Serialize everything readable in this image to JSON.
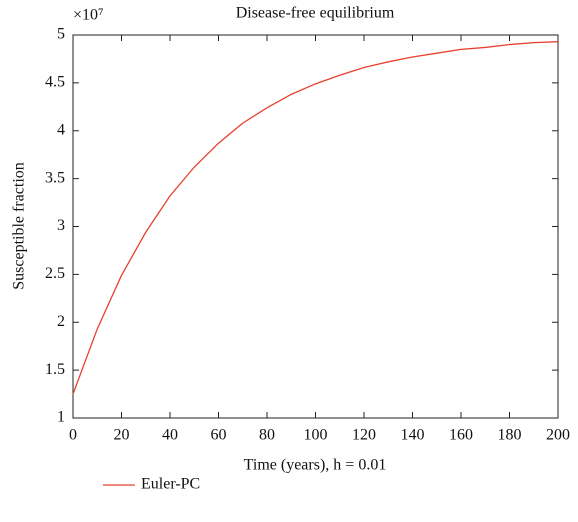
{
  "chart_data": {
    "type": "line",
    "title": "Disease-free equilibrium",
    "y_scale_label": "×10⁷",
    "x_label": "Time (years), h = 0.01",
    "y_label": "Susceptible fraction",
    "x": [
      0,
      10,
      20,
      30,
      40,
      50,
      60,
      70,
      80,
      90,
      100,
      110,
      120,
      130,
      140,
      150,
      160,
      170,
      180,
      190,
      200
    ],
    "series": [
      {
        "name": "Euler-PC",
        "color": "#e8402e",
        "values": [
          1.25,
          1.93,
          2.49,
          2.94,
          3.32,
          3.62,
          3.87,
          4.08,
          4.24,
          4.38,
          4.49,
          4.58,
          4.66,
          4.72,
          4.77,
          4.81,
          4.85,
          4.87,
          4.9,
          4.92,
          4.93
        ]
      }
    ],
    "xlim": [
      0,
      200
    ],
    "xticks": [
      0,
      20,
      40,
      60,
      80,
      100,
      120,
      140,
      160,
      180,
      200
    ],
    "ylim": [
      1,
      5
    ],
    "yticks": [
      1,
      1.5,
      2,
      2.5,
      3,
      3.5,
      4,
      4.5,
      5
    ],
    "grid": false,
    "legend": "bottom-left"
  }
}
